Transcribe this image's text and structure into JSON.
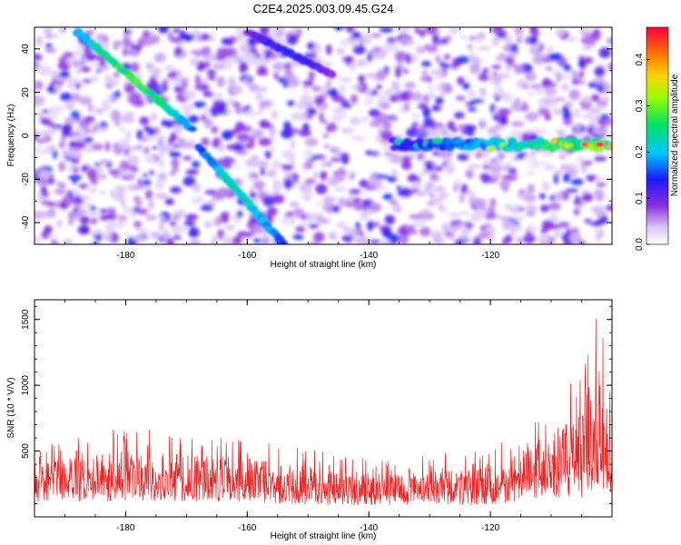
{
  "title": "C2E4.2025.003.09.45.G24",
  "colors": {
    "snr_line": "#ee2222",
    "spectrogram_low": "#ffffff",
    "spectrogram_high": "#ff0044"
  },
  "chart_data": [
    {
      "type": "heatmap",
      "xlabel": "Height of straight line (km)",
      "ylabel": "Frequency (Hz)",
      "xlim": [
        -195,
        -100
      ],
      "ylim": [
        -50,
        50
      ],
      "xticks": [
        -180,
        -160,
        -140,
        -120
      ],
      "yticks": [
        -40,
        -20,
        0,
        20,
        40
      ],
      "colorbar": {
        "label": "Normalized spectral amplitude",
        "range": [
          0,
          0.47
        ],
        "ticks": [
          "0.0",
          "0.1",
          "0.2",
          "0.3",
          "0.4"
        ],
        "colormap": "white-purple-blue-cyan-green-yellow-orange-red"
      },
      "features": [
        {
          "kind": "descending_streak",
          "x_start": -188,
          "y_start": 48,
          "x_end": -169,
          "y_end": 3,
          "peak_amplitude": 0.3
        },
        {
          "kind": "descending_streak",
          "x_start": -168,
          "y_start": -5,
          "x_end": -154,
          "y_end": -50,
          "peak_amplitude": 0.25
        },
        {
          "kind": "descending_streak",
          "x_start": -160,
          "y_start": 48,
          "x_end": -146,
          "y_end": 28,
          "peak_amplitude": 0.15
        },
        {
          "kind": "horizontal_band",
          "x_start": -136,
          "x_end": -100,
          "y": -4,
          "peak_amplitude": 0.45,
          "peak_x": -102
        }
      ]
    },
    {
      "type": "line",
      "xlabel": "Height of straight line (km)",
      "ylabel": "SNR (10 * V/V)",
      "xlim": [
        -195,
        -100
      ],
      "ylim": [
        0,
        1650
      ],
      "xticks": [
        -180,
        -160,
        -140,
        -120
      ],
      "yticks": [
        500,
        1000,
        1500
      ],
      "series": [
        {
          "color": "#ee2222",
          "envelope": [
            {
              "x": -195,
              "low": 80,
              "mean": 250,
              "high": 550
            },
            {
              "x": -180,
              "low": 80,
              "mean": 280,
              "high": 680
            },
            {
              "x": -170,
              "low": 80,
              "mean": 270,
              "high": 650
            },
            {
              "x": -160,
              "low": 70,
              "mean": 260,
              "high": 600
            },
            {
              "x": -150,
              "low": 60,
              "mean": 220,
              "high": 520
            },
            {
              "x": -140,
              "low": 60,
              "mean": 190,
              "high": 450
            },
            {
              "x": -130,
              "low": 60,
              "mean": 200,
              "high": 470
            },
            {
              "x": -120,
              "low": 60,
              "mean": 210,
              "high": 520
            },
            {
              "x": -115,
              "low": 80,
              "mean": 300,
              "high": 650
            },
            {
              "x": -110,
              "low": 80,
              "mean": 380,
              "high": 870
            },
            {
              "x": -105,
              "low": 80,
              "mean": 400,
              "high": 1100
            },
            {
              "x": -102,
              "low": 80,
              "mean": 500,
              "high": 1650
            },
            {
              "x": -100,
              "low": 60,
              "mean": 400,
              "high": 950
            }
          ]
        }
      ]
    }
  ]
}
